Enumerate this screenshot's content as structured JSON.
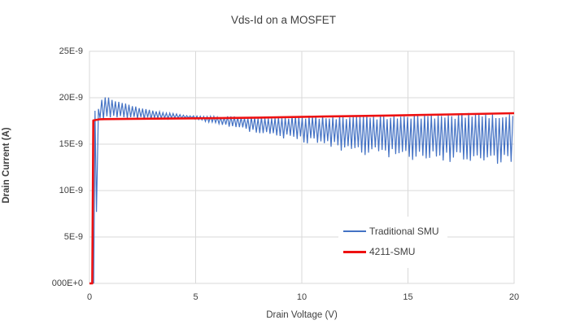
{
  "chart_data": {
    "type": "line",
    "title": "Vds-Id on a MOSFET",
    "xlabel": "Drain Voltage (V)",
    "ylabel": "Drain Current (A)",
    "xlim": [
      0,
      20
    ],
    "ylim": [
      0,
      2.5e-08
    ],
    "x_tick_values": [
      0,
      5,
      10,
      15,
      20
    ],
    "x_tick_labels": [
      "0",
      "5",
      "10",
      "15",
      "20"
    ],
    "y_tick_values": [
      0,
      5e-09,
      1e-08,
      1.5e-08,
      2e-08,
      2.5e-08
    ],
    "y_tick_labels": [
      "000E+0",
      "5E-9",
      "10E-9",
      "15E-9",
      "20E-9",
      "25E-9"
    ],
    "grid": true,
    "gridline_color": "#d9d9d9",
    "text_color": "#404040",
    "legend": {
      "position": "inside-right"
    },
    "series": [
      {
        "name": "Traditional SMU",
        "color": "#4472c4",
        "line_width": 1.2,
        "transient_points": [
          [
            0.2,
            0
          ],
          [
            0.26,
            1.86e-08
          ],
          [
            0.33,
            7.7e-09
          ]
        ],
        "oscillation": {
          "start_v": 0.42,
          "end_v": 20,
          "period_v": 0.16,
          "upper_envelope": [
            [
              0.42,
              1.88e-08
            ],
            [
              0.6,
              2.02e-08
            ],
            [
              1.0,
              2e-08
            ],
            [
              1.5,
              1.96e-08
            ],
            [
              2.0,
              1.93e-08
            ],
            [
              2.5,
              1.89e-08
            ],
            [
              3.0,
              1.86e-08
            ],
            [
              3.5,
              1.845e-08
            ],
            [
              4.0,
              1.83e-08
            ],
            [
              4.5,
              1.81e-08
            ],
            [
              5.0,
              1.805e-08
            ],
            [
              6.0,
              1.8e-08
            ],
            [
              8.0,
              1.8e-08
            ],
            [
              10.0,
              1.805e-08
            ],
            [
              12.0,
              1.815e-08
            ],
            [
              14.0,
              1.82e-08
            ],
            [
              16.0,
              1.83e-08
            ],
            [
              18.0,
              1.84e-08
            ],
            [
              20.0,
              1.85e-08
            ]
          ],
          "lower_envelope": [
            [
              0.42,
              1.74e-08
            ],
            [
              1.0,
              1.76e-08
            ],
            [
              2.0,
              1.765e-08
            ],
            [
              3.0,
              1.77e-08
            ],
            [
              4.0,
              1.775e-08
            ],
            [
              4.8,
              1.78e-08
            ],
            [
              5.3,
              1.75e-08
            ],
            [
              6.0,
              1.72e-08
            ],
            [
              7.0,
              1.66e-08
            ],
            [
              8.0,
              1.61e-08
            ],
            [
              9.0,
              1.56e-08
            ],
            [
              10.0,
              1.52e-08
            ],
            [
              11.0,
              1.47e-08
            ],
            [
              12.0,
              1.42e-08
            ],
            [
              13.0,
              1.38e-08
            ],
            [
              14.0,
              1.35e-08
            ],
            [
              15.0,
              1.33e-08
            ],
            [
              16.0,
              1.32e-08
            ],
            [
              17.0,
              1.305e-08
            ],
            [
              18.0,
              1.29e-08
            ],
            [
              19.0,
              1.28e-08
            ],
            [
              20.0,
              1.3e-08
            ]
          ]
        }
      },
      {
        "name": "4211-SMU",
        "color": "#ee1111",
        "line_width": 2.6,
        "points": [
          [
            0,
            0
          ],
          [
            0.13,
            0
          ],
          [
            0.18,
            1.755e-08
          ],
          [
            0.5,
            1.768e-08
          ],
          [
            2,
            1.773e-08
          ],
          [
            5,
            1.778e-08
          ],
          [
            8,
            1.786e-08
          ],
          [
            11,
            1.797e-08
          ],
          [
            14,
            1.808e-08
          ],
          [
            17,
            1.82e-08
          ],
          [
            20,
            1.833e-08
          ]
        ]
      }
    ]
  }
}
